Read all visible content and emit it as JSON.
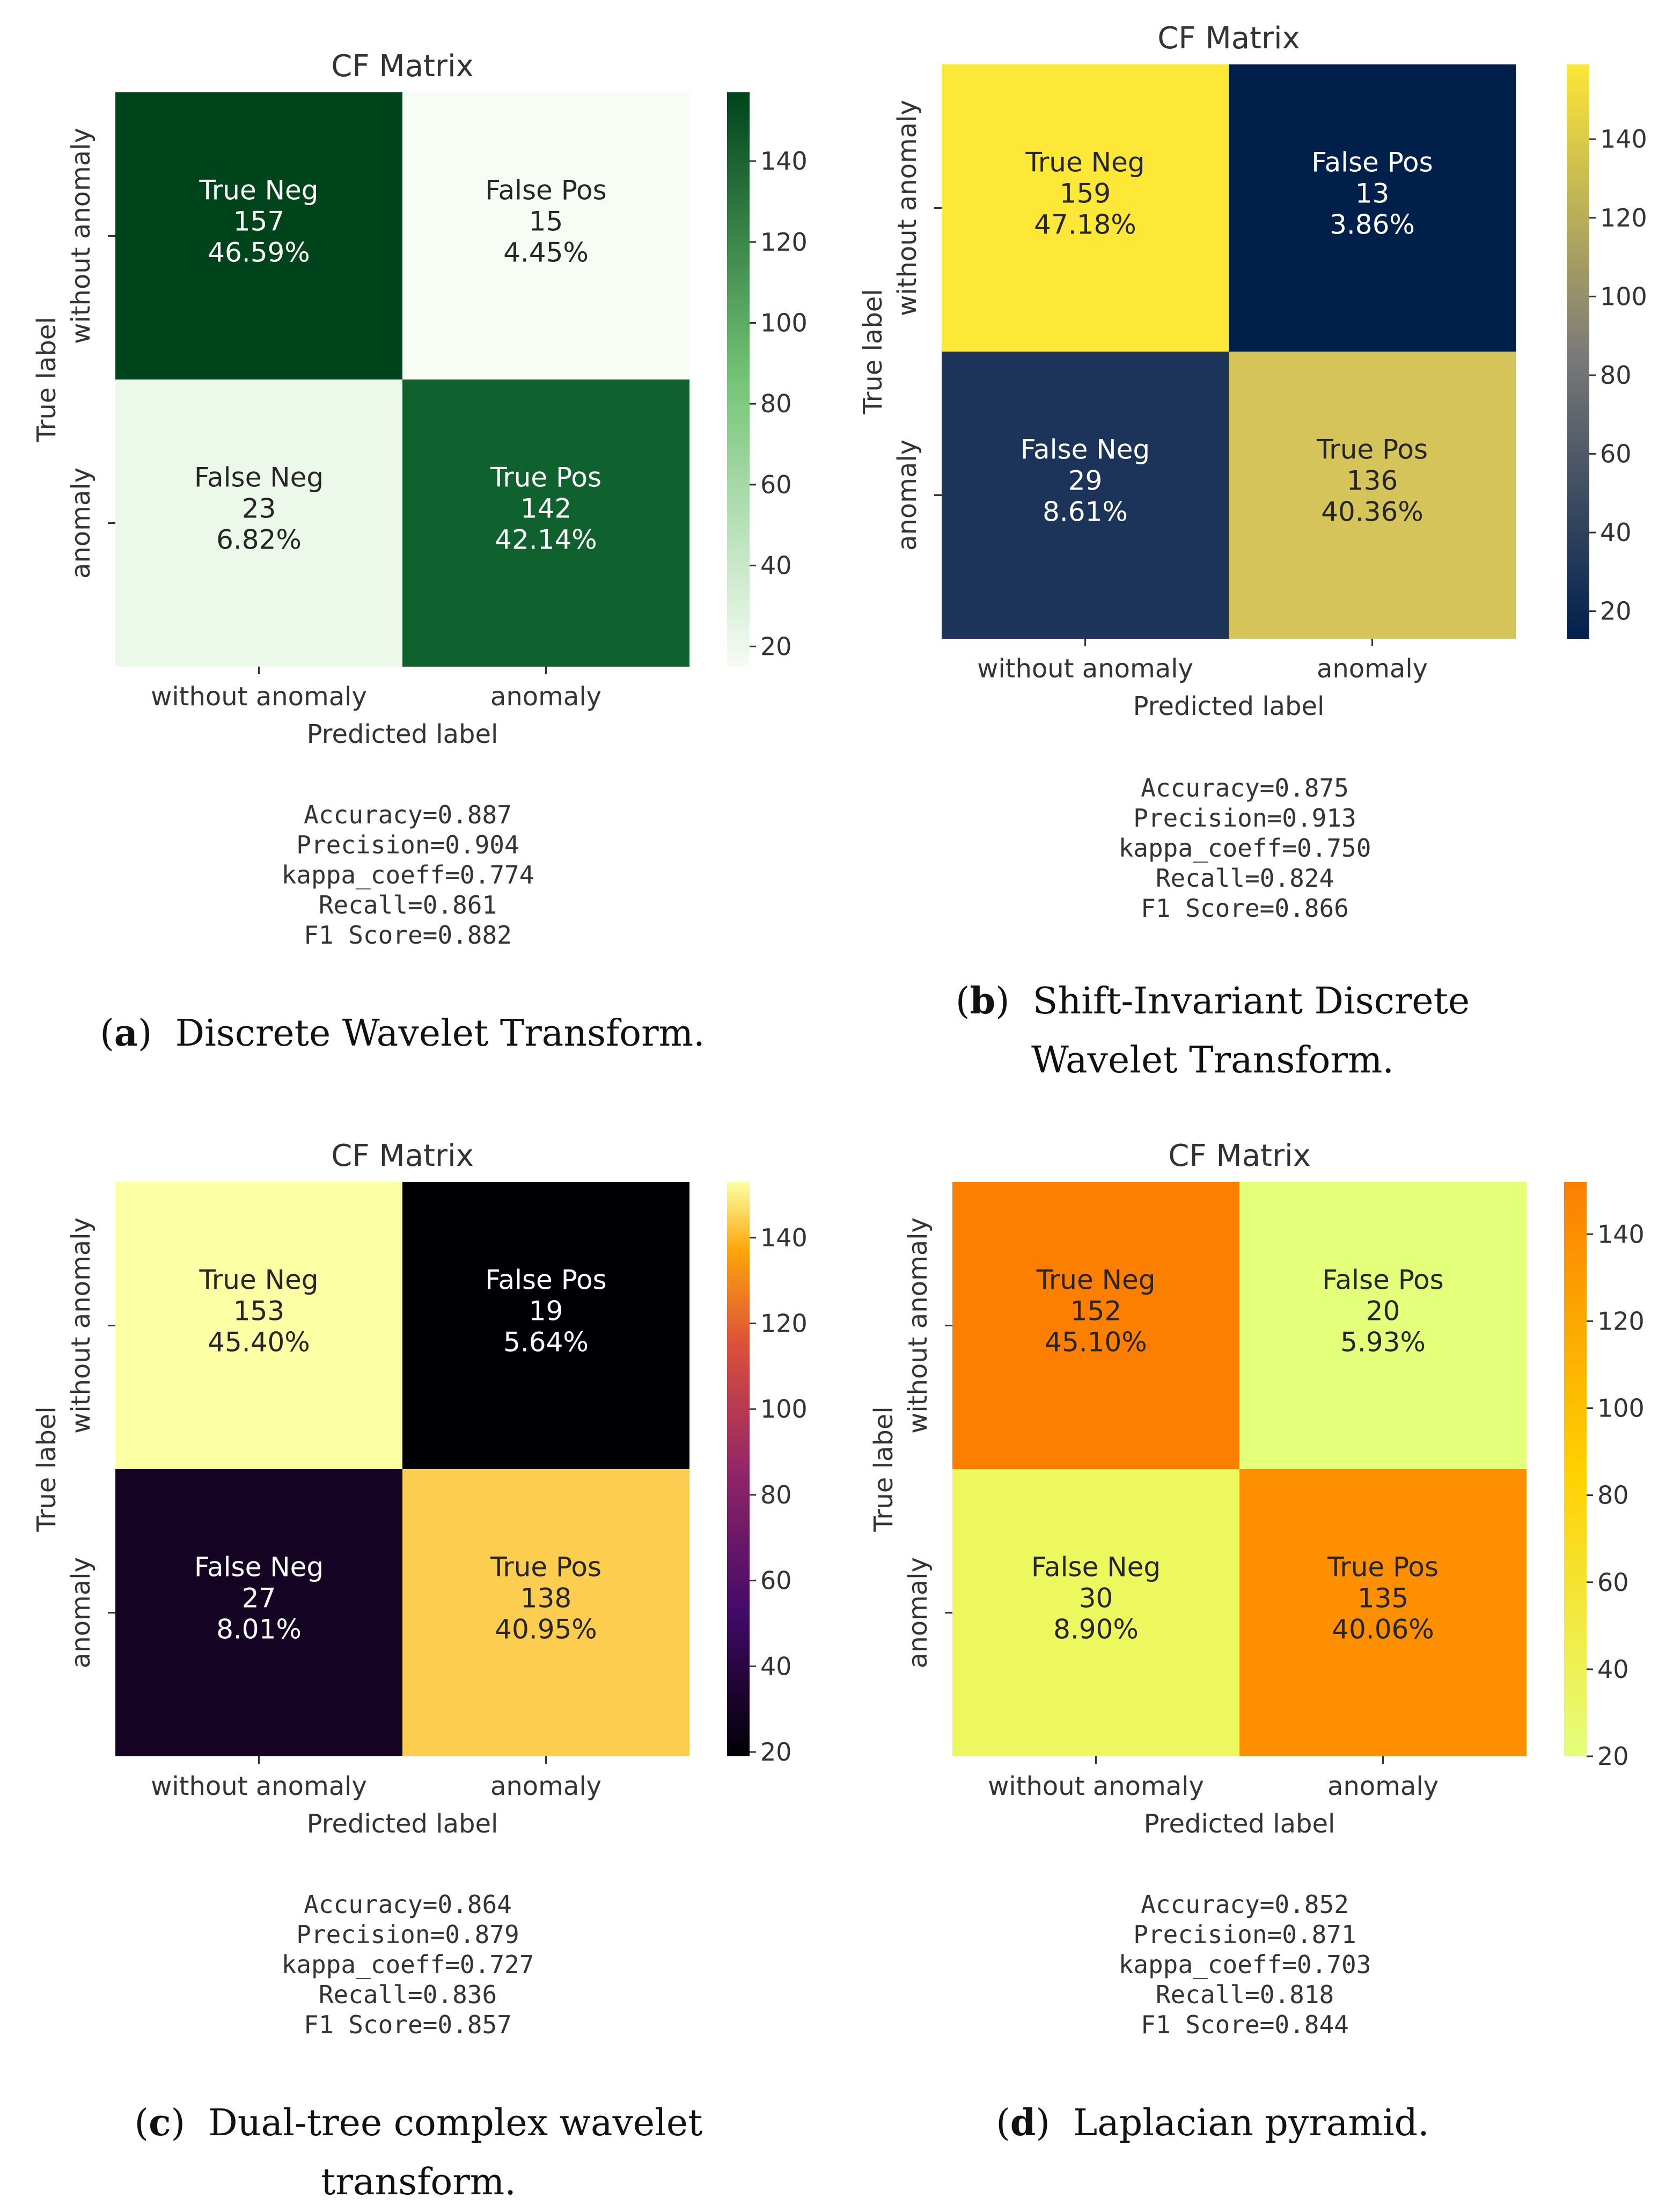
{
  "chart_data": [
    {
      "type": "heatmap",
      "panel": "a",
      "title": "CF Matrix",
      "xlabel": "Predicted label",
      "ylabel": "True label",
      "x_categories": [
        "without anomaly",
        "anomaly"
      ],
      "y_categories": [
        "without anomaly",
        "anomaly"
      ],
      "cells": [
        [
          {
            "label": "True Neg",
            "count": "157",
            "pct": "46.59%",
            "value": 157
          },
          {
            "label": "False Pos",
            "count": "15",
            "pct": "4.45%",
            "value": 15
          }
        ],
        [
          {
            "label": "False Neg",
            "count": "23",
            "pct": "6.82%",
            "value": 23
          },
          {
            "label": "True Pos",
            "count": "142",
            "pct": "42.14%",
            "value": 142
          }
        ]
      ],
      "colormap": "Greens",
      "colorbar": {
        "range": [
          15,
          157
        ],
        "ticks": [
          "20",
          "40",
          "60",
          "80",
          "100",
          "120",
          "140"
        ]
      },
      "metrics": [
        "Accuracy=0.887",
        "Precision=0.904",
        "kappa_coeff=0.774",
        "Recall=0.861",
        "F1 Score=0.882"
      ],
      "caption": {
        "tag": "a",
        "text": "Discrete Wavelet Transform."
      }
    },
    {
      "type": "heatmap",
      "panel": "b",
      "title": "CF Matrix",
      "xlabel": "Predicted label",
      "ylabel": "True label",
      "x_categories": [
        "without anomaly",
        "anomaly"
      ],
      "y_categories": [
        "without anomaly",
        "anomaly"
      ],
      "cells": [
        [
          {
            "label": "True Neg",
            "count": "159",
            "pct": "47.18%",
            "value": 159
          },
          {
            "label": "False Pos",
            "count": "13",
            "pct": "3.86%",
            "value": 13
          }
        ],
        [
          {
            "label": "False Neg",
            "count": "29",
            "pct": "8.61%",
            "value": 29
          },
          {
            "label": "True Pos",
            "count": "136",
            "pct": "40.36%",
            "value": 136
          }
        ]
      ],
      "colormap": "cividis",
      "colorbar": {
        "range": [
          13,
          159
        ],
        "ticks": [
          "20",
          "40",
          "60",
          "80",
          "100",
          "120",
          "140"
        ]
      },
      "metrics": [
        "Accuracy=0.875",
        "Precision=0.913",
        "kappa_coeff=0.750",
        "Recall=0.824",
        "F1 Score=0.866"
      ],
      "caption": {
        "tag": "b",
        "text": "Shift-Invariant Discrete Wavelet Transform."
      }
    },
    {
      "type": "heatmap",
      "panel": "c",
      "title": "CF Matrix",
      "xlabel": "Predicted label",
      "ylabel": "True label",
      "x_categories": [
        "without anomaly",
        "anomaly"
      ],
      "y_categories": [
        "without anomaly",
        "anomaly"
      ],
      "cells": [
        [
          {
            "label": "True Neg",
            "count": "153",
            "pct": "45.40%",
            "value": 153
          },
          {
            "label": "False Pos",
            "count": "19",
            "pct": "5.64%",
            "value": 19
          }
        ],
        [
          {
            "label": "False Neg",
            "count": "27",
            "pct": "8.01%",
            "value": 27
          },
          {
            "label": "True Pos",
            "count": "138",
            "pct": "40.95%",
            "value": 138
          }
        ]
      ],
      "colormap": "inferno",
      "colorbar": {
        "range": [
          19,
          153
        ],
        "ticks": [
          "20",
          "40",
          "60",
          "80",
          "100",
          "120",
          "140"
        ]
      },
      "metrics": [
        "Accuracy=0.864",
        "Precision=0.879",
        "kappa_coeff=0.727",
        "Recall=0.836",
        "F1 Score=0.857"
      ],
      "caption": {
        "tag": "c",
        "text": "Dual-tree complex wavelet transform."
      }
    },
    {
      "type": "heatmap",
      "panel": "d",
      "title": "CF Matrix",
      "xlabel": "Predicted label",
      "ylabel": "True label",
      "x_categories": [
        "without anomaly",
        "anomaly"
      ],
      "y_categories": [
        "without anomaly",
        "anomaly"
      ],
      "cells": [
        [
          {
            "label": "True Neg",
            "count": "152",
            "pct": "45.10%",
            "value": 152
          },
          {
            "label": "False Pos",
            "count": "20",
            "pct": "5.93%",
            "value": 20
          }
        ],
        [
          {
            "label": "False Neg",
            "count": "30",
            "pct": "8.90%",
            "value": 30
          },
          {
            "label": "True Pos",
            "count": "135",
            "pct": "40.06%",
            "value": 135
          }
        ]
      ],
      "colormap": "Wistia",
      "colorbar": {
        "range": [
          20,
          152
        ],
        "ticks": [
          "20",
          "40",
          "60",
          "80",
          "100",
          "120",
          "140"
        ]
      },
      "metrics": [
        "Accuracy=0.852",
        "Precision=0.871",
        "kappa_coeff=0.703",
        "Recall=0.818",
        "F1 Score=0.844"
      ],
      "caption": {
        "tag": "d",
        "text": "Laplacian pyramid."
      }
    }
  ]
}
